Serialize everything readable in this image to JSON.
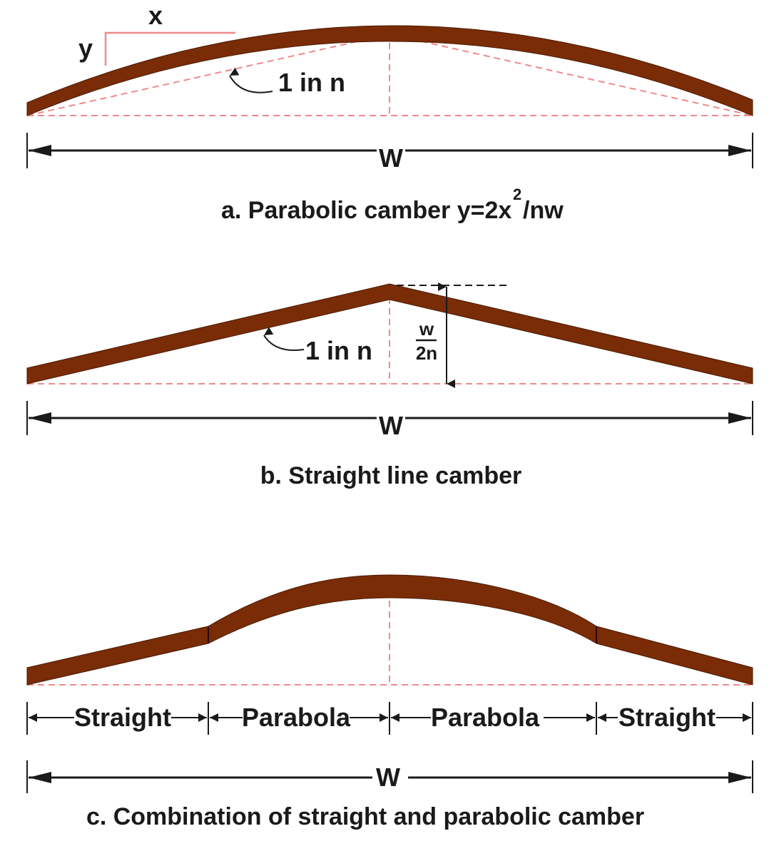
{
  "colors": {
    "road": "#7a2c06",
    "guide": "#f08a8a",
    "dimension": "#1a1a1a",
    "background": "#ffffff"
  },
  "panel_a": {
    "x_label": "x",
    "y_label": "y",
    "slope_label": "1 in n",
    "width_label": "W",
    "caption_main": "a. Parabolic camber  y=2x",
    "caption_sup": "2",
    "caption_tail": "/nw"
  },
  "panel_b": {
    "slope_label": "1 in n",
    "height_num": "w",
    "height_den": "2n",
    "width_label": "W",
    "caption": "b. Straight line camber"
  },
  "panel_c": {
    "segments": [
      "Straight",
      "Parabola",
      "Parabola",
      "Straight"
    ],
    "width_label": "W",
    "caption": "c. Combination of straight and parabolic camber"
  }
}
